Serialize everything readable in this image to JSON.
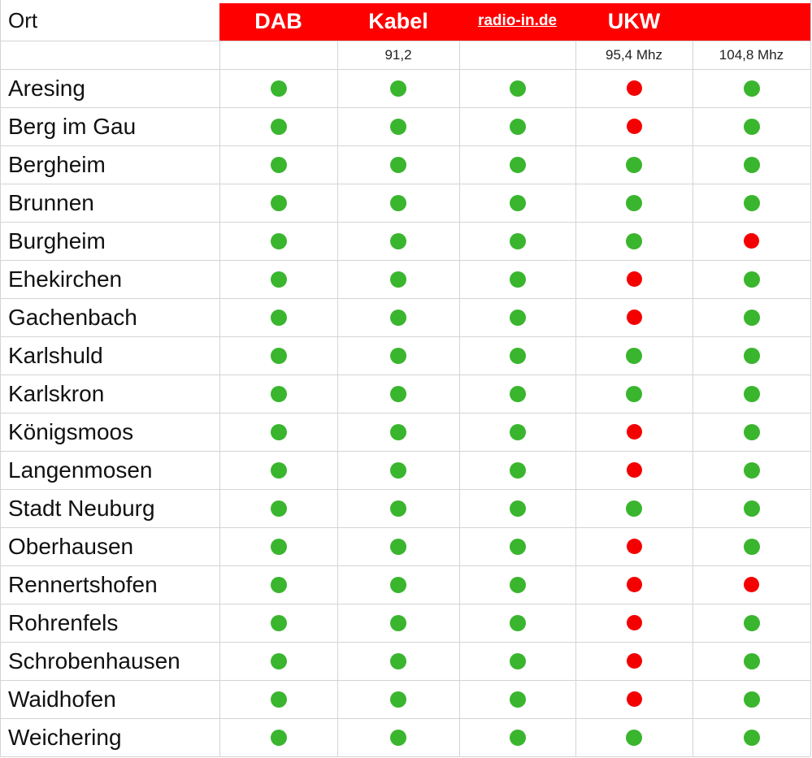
{
  "table": {
    "corner": "Ort",
    "status_colors": {
      "green": "#3ab52e",
      "red": "#f50000"
    },
    "columns": [
      {
        "label": "DAB"
      },
      {
        "label": "Kabel",
        "sub": "91,2"
      },
      {
        "label": "radio-in.de",
        "link": true
      },
      {
        "label": "UKW",
        "sub": "95,4 Mhz"
      },
      {
        "sub": "104,8 Mhz"
      }
    ],
    "rows": [
      {
        "name": "Aresing",
        "status": [
          "green",
          "green",
          "green",
          "red",
          "green"
        ]
      },
      {
        "name": "Berg im Gau",
        "status": [
          "green",
          "green",
          "green",
          "red",
          "green"
        ]
      },
      {
        "name": "Bergheim",
        "status": [
          "green",
          "green",
          "green",
          "green",
          "green"
        ]
      },
      {
        "name": "Brunnen",
        "status": [
          "green",
          "green",
          "green",
          "green",
          "green"
        ]
      },
      {
        "name": "Burgheim",
        "status": [
          "green",
          "green",
          "green",
          "green",
          "red"
        ]
      },
      {
        "name": "Ehekirchen",
        "status": [
          "green",
          "green",
          "green",
          "red",
          "green"
        ]
      },
      {
        "name": "Gachenbach",
        "status": [
          "green",
          "green",
          "green",
          "red",
          "green"
        ]
      },
      {
        "name": "Karlshuld",
        "status": [
          "green",
          "green",
          "green",
          "green",
          "green"
        ]
      },
      {
        "name": "Karlskron",
        "status": [
          "green",
          "green",
          "green",
          "green",
          "green"
        ]
      },
      {
        "name": "Königsmoos",
        "status": [
          "green",
          "green",
          "green",
          "red",
          "green"
        ]
      },
      {
        "name": "Langenmosen",
        "status": [
          "green",
          "green",
          "green",
          "red",
          "green"
        ]
      },
      {
        "name": "Stadt Neuburg",
        "status": [
          "green",
          "green",
          "green",
          "green",
          "green"
        ]
      },
      {
        "name": "Oberhausen",
        "status": [
          "green",
          "green",
          "green",
          "red",
          "green"
        ]
      },
      {
        "name": "Rennertshofen",
        "status": [
          "green",
          "green",
          "green",
          "red",
          "red"
        ]
      },
      {
        "name": "Rohrenfels",
        "status": [
          "green",
          "green",
          "green",
          "red",
          "green"
        ]
      },
      {
        "name": "Schrobenhausen",
        "status": [
          "green",
          "green",
          "green",
          "red",
          "green"
        ]
      },
      {
        "name": "Waidhofen",
        "status": [
          "green",
          "green",
          "green",
          "red",
          "green"
        ]
      },
      {
        "name": "Weichering",
        "status": [
          "green",
          "green",
          "green",
          "green",
          "green"
        ]
      }
    ]
  }
}
